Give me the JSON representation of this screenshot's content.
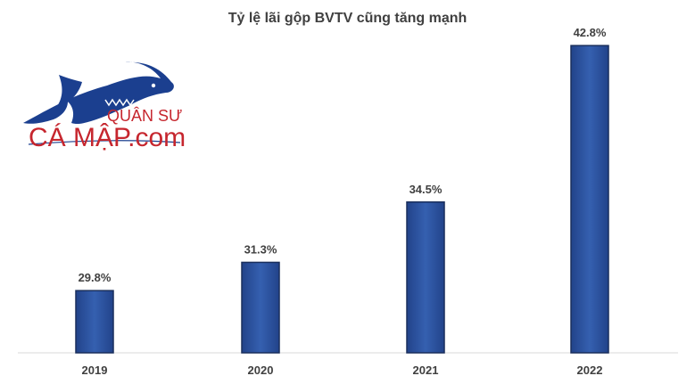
{
  "logo": {
    "line1": "QUÂN SƯ",
    "line2": "CÁ MẬP.com",
    "colors": {
      "shark": "#1b3f8f",
      "text": "#c6262e"
    }
  },
  "chart_data": {
    "type": "bar",
    "title": "Tỷ lệ lãi gộp BVTV cũng tăng mạnh",
    "categories": [
      "2019",
      "2020",
      "2021",
      "2022"
    ],
    "values": [
      29.8,
      31.3,
      34.5,
      42.8
    ],
    "value_labels": [
      "29.8%",
      "31.3%",
      "34.5%",
      "42.8%"
    ],
    "xlabel": "",
    "ylabel": "",
    "ylim": [
      26.5,
      43.8
    ],
    "grid": false,
    "legend": "none",
    "bar_color": "#2f56a3",
    "bar_edge_color": "#1a2f5c"
  }
}
